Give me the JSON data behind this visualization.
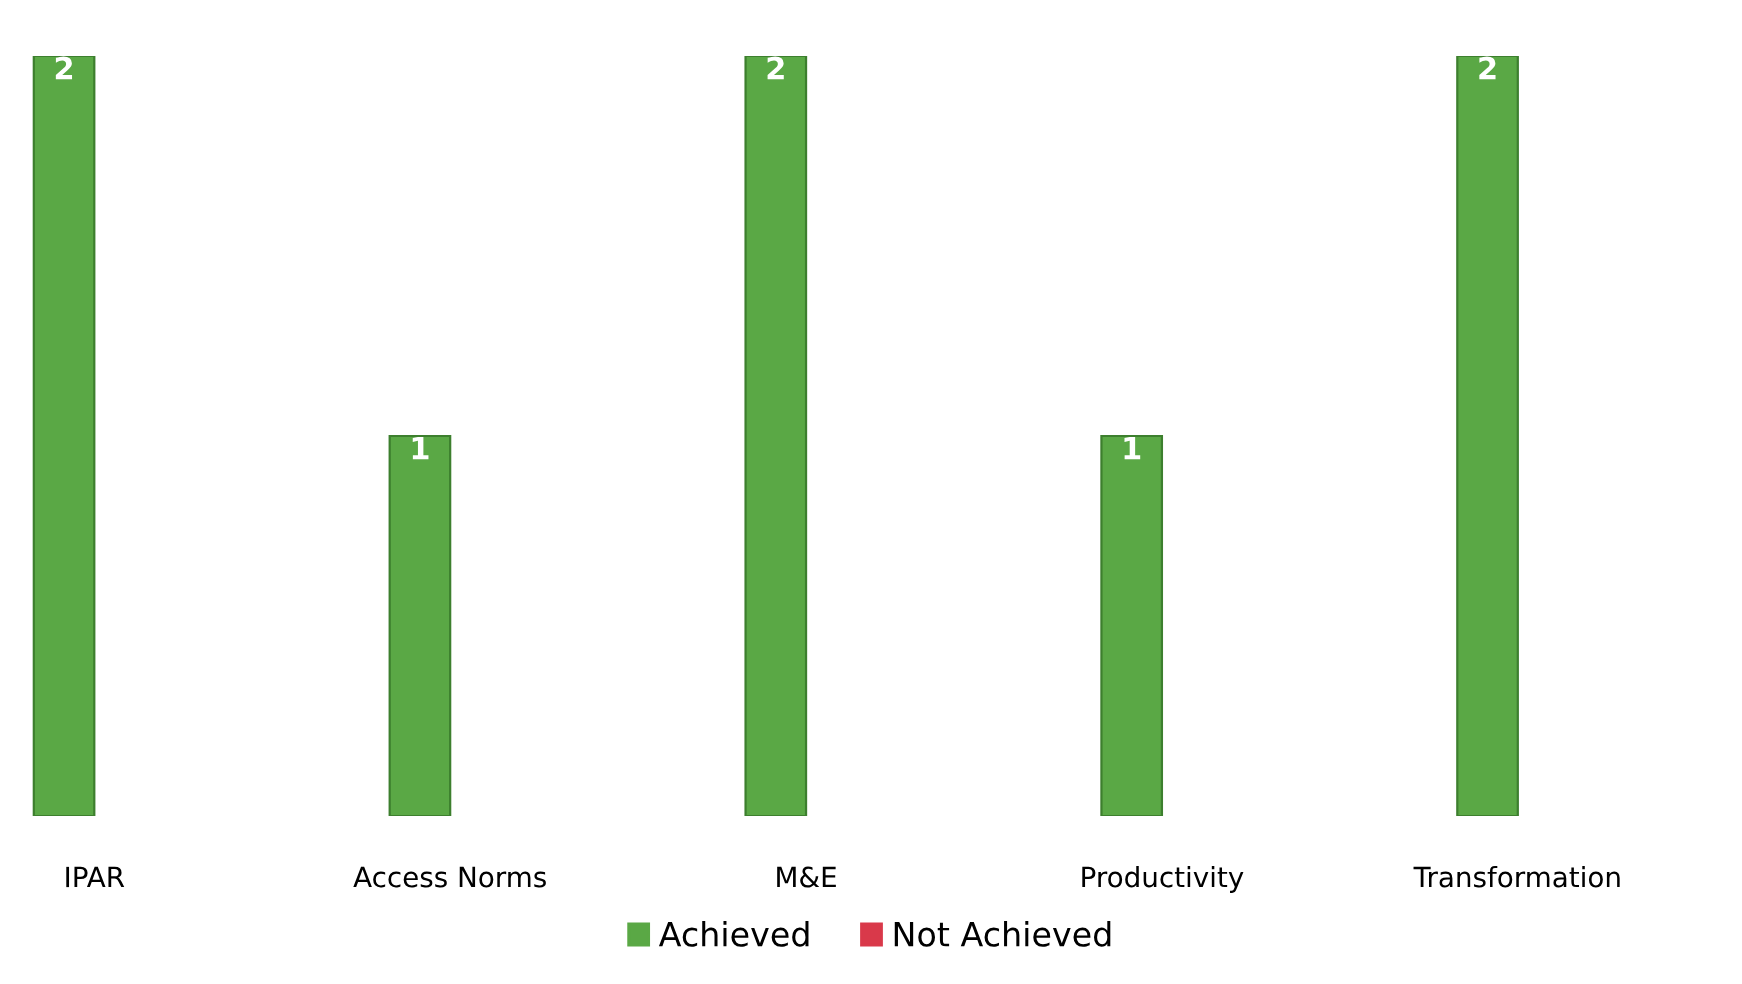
{
  "chart_data": {
    "type": "bar",
    "categories": [
      "IPAR",
      "Access Norms",
      "M&E",
      "Productivity",
      "Transformation"
    ],
    "series": [
      {
        "name": "Achieved",
        "color": "#5aa845",
        "values": [
          2,
          1,
          2,
          1,
          2
        ]
      },
      {
        "name": "Not Achieved",
        "color": "#d9394a",
        "values": [
          null,
          null,
          null,
          null,
          null
        ]
      }
    ],
    "data_labels": true,
    "legend": "bottom",
    "grid": false
  }
}
